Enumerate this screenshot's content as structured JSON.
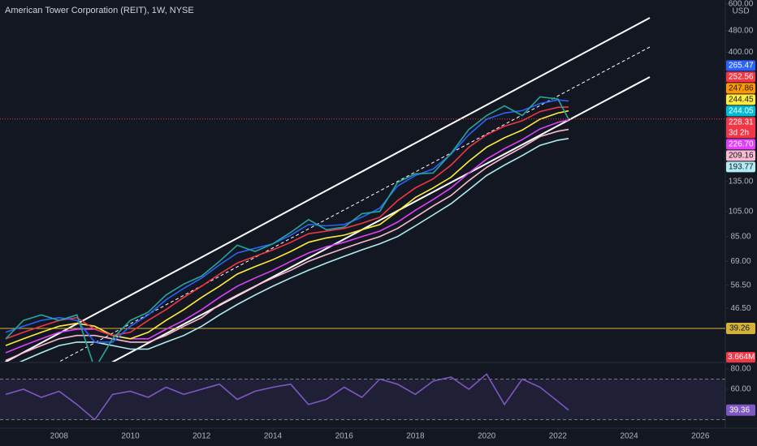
{
  "chart_data": [
    {
      "type": "line",
      "title": "American Tower Corporation (REIT), 1W, NYSE",
      "currency": "USD",
      "log_scale": true,
      "grid": false,
      "x": [
        2006.5,
        2007,
        2007.5,
        2008,
        2008.5,
        2009,
        2009.5,
        2010,
        2010.5,
        2011,
        2011.5,
        2012,
        2012.5,
        2013,
        2013.5,
        2014,
        2014.5,
        2015,
        2015.5,
        2016,
        2016.5,
        2017,
        2017.5,
        2018,
        2018.5,
        2019,
        2019.5,
        2020,
        2020.5,
        2021,
        2021.5,
        2022,
        2022.3
      ],
      "xlim": [
        2006.34,
        2026.7
      ],
      "ylim": [
        30,
        600
      ],
      "yticks": [
        {
          "value": 600,
          "label": "600.00"
        },
        {
          "value": 480,
          "label": "480.00"
        },
        {
          "value": 400,
          "label": "400.00"
        },
        {
          "value": 135,
          "label": "135.00"
        },
        {
          "value": 105,
          "label": "105.00"
        },
        {
          "value": 85,
          "label": "85.00"
        },
        {
          "value": 69,
          "label": "69.00"
        },
        {
          "value": 56.5,
          "label": "56.50"
        },
        {
          "value": 46.5,
          "label": "46.50"
        }
      ],
      "series": [
        {
          "color": "#b2ebf2",
          "values": [
            28,
            30,
            32,
            34,
            35,
            35,
            34,
            33,
            33,
            35,
            37,
            40,
            44,
            48,
            52,
            56,
            60,
            64,
            68,
            72,
            76,
            80,
            85,
            93,
            102,
            112,
            126,
            142,
            155,
            168,
            183,
            191,
            193.77
          ]
        },
        {
          "color": "#f8bbd0",
          "values": [
            30,
            32,
            34,
            36,
            37,
            37,
            36,
            35,
            35,
            37,
            40,
            43,
            48,
            52,
            56,
            60,
            64,
            69,
            73,
            77,
            81,
            85,
            91,
            100,
            110,
            120,
            136,
            152,
            166,
            180,
            197,
            206,
            209.16
          ]
        },
        {
          "color": "#e040fb",
          "values": [
            32,
            34,
            36,
            38,
            39,
            39,
            37,
            36,
            36,
            39,
            42,
            46,
            51,
            56,
            60,
            64,
            69,
            74,
            78,
            81,
            85,
            89,
            96,
            106,
            116,
            128,
            145,
            163,
            178,
            192,
            210,
            222,
            226.7
          ]
        },
        {
          "color": "#ffeb3b",
          "values": [
            34,
            36,
            38,
            40,
            41,
            40,
            37,
            36,
            38,
            42,
            46,
            51,
            56,
            62,
            66,
            70,
            75,
            81,
            84,
            86,
            90,
            94,
            105,
            118,
            128,
            140,
            160,
            180,
            195,
            208,
            228,
            240,
            244.45
          ]
        },
        {
          "color": "#f23645",
          "values": [
            36,
            38,
            40,
            42,
            43,
            39,
            37,
            38,
            42,
            46,
            51,
            56,
            62,
            68,
            72,
            76,
            81,
            87,
            89,
            91,
            95,
            100,
            115,
            128,
            138,
            155,
            180,
            200,
            215,
            225,
            243,
            252,
            252.56
          ]
        },
        {
          "color": "#2962ff",
          "values": [
            38,
            40,
            42,
            43,
            42,
            35,
            35,
            40,
            44,
            50,
            55,
            60,
            67,
            74,
            77,
            80,
            86,
            94,
            93,
            94,
            100,
            108,
            130,
            142,
            150,
            170,
            200,
            228,
            240,
            245,
            260,
            268,
            265.47
          ]
        },
        {
          "color": "#26a69a",
          "values": [
            36,
            42,
            44,
            42,
            44,
            28,
            36,
            42,
            45,
            52,
            57,
            61,
            69,
            79,
            75,
            80,
            88,
            98,
            90,
            92,
            103,
            105,
            134,
            144,
            145,
            171,
            209,
            235,
            255,
            235,
            275,
            270,
            228.31
          ]
        }
      ],
      "price_tags": [
        {
          "value": 265.47,
          "label": "265.47",
          "color": "#2962ff"
        },
        {
          "value": 252.56,
          "label": "252.56",
          "color": "#f23645"
        },
        {
          "value": 247.86,
          "label": "247.86",
          "color": "#ff9800"
        },
        {
          "value": 244.45,
          "label": "244.45",
          "color": "#ffeb3b"
        },
        {
          "value": 244.05,
          "label": "244.05",
          "color": "#00bcd4"
        },
        {
          "value": 228.31,
          "label": "228.31",
          "color": "#f23645"
        },
        {
          "value": 226.7,
          "label": "226.70",
          "color": "#e040fb"
        },
        {
          "value": 209.16,
          "label": "209.16",
          "color": "#f8bbd0"
        },
        {
          "value": 193.77,
          "label": "193.77",
          "color": "#b2ebf2"
        }
      ],
      "countdown": "3d 2h",
      "level_line": {
        "value": 39.26,
        "label": "39.26",
        "color": "#d4b23a"
      },
      "volume_tag": {
        "value": 3664000,
        "label": "3.664M",
        "color": "#f23645"
      }
    },
    {
      "type": "line",
      "x": [
        2006.5,
        2007,
        2007.5,
        2008,
        2008.5,
        2009,
        2009.5,
        2010,
        2010.5,
        2011,
        2011.5,
        2012,
        2012.5,
        2013,
        2013.5,
        2014,
        2014.5,
        2015,
        2015.5,
        2016,
        2016.5,
        2017,
        2017.5,
        2018,
        2018.5,
        2019,
        2019.5,
        2020,
        2020.5,
        2021,
        2021.5,
        2022,
        2022.3
      ],
      "xlim": [
        2006.34,
        2026.7
      ],
      "xticks": [
        2008,
        2010,
        2012,
        2014,
        2016,
        2018,
        2020,
        2022,
        2024,
        2026
      ],
      "ylim": [
        21.6,
        85.6
      ],
      "yticks": [
        {
          "value": 80,
          "label": "80.00"
        },
        {
          "value": 60,
          "label": "60.00"
        }
      ],
      "bands": [
        70,
        30
      ],
      "series": [
        {
          "color": "#7e57c2",
          "values": [
            55,
            60,
            52,
            58,
            45,
            30,
            55,
            58,
            52,
            62,
            55,
            60,
            65,
            50,
            58,
            62,
            65,
            45,
            50,
            62,
            52,
            70,
            65,
            55,
            68,
            72,
            60,
            75,
            45,
            70,
            62,
            48,
            39.36
          ]
        }
      ],
      "last_tag": {
        "value": 39.36,
        "label": "39.36",
        "color": "#7e57c2"
      }
    }
  ]
}
